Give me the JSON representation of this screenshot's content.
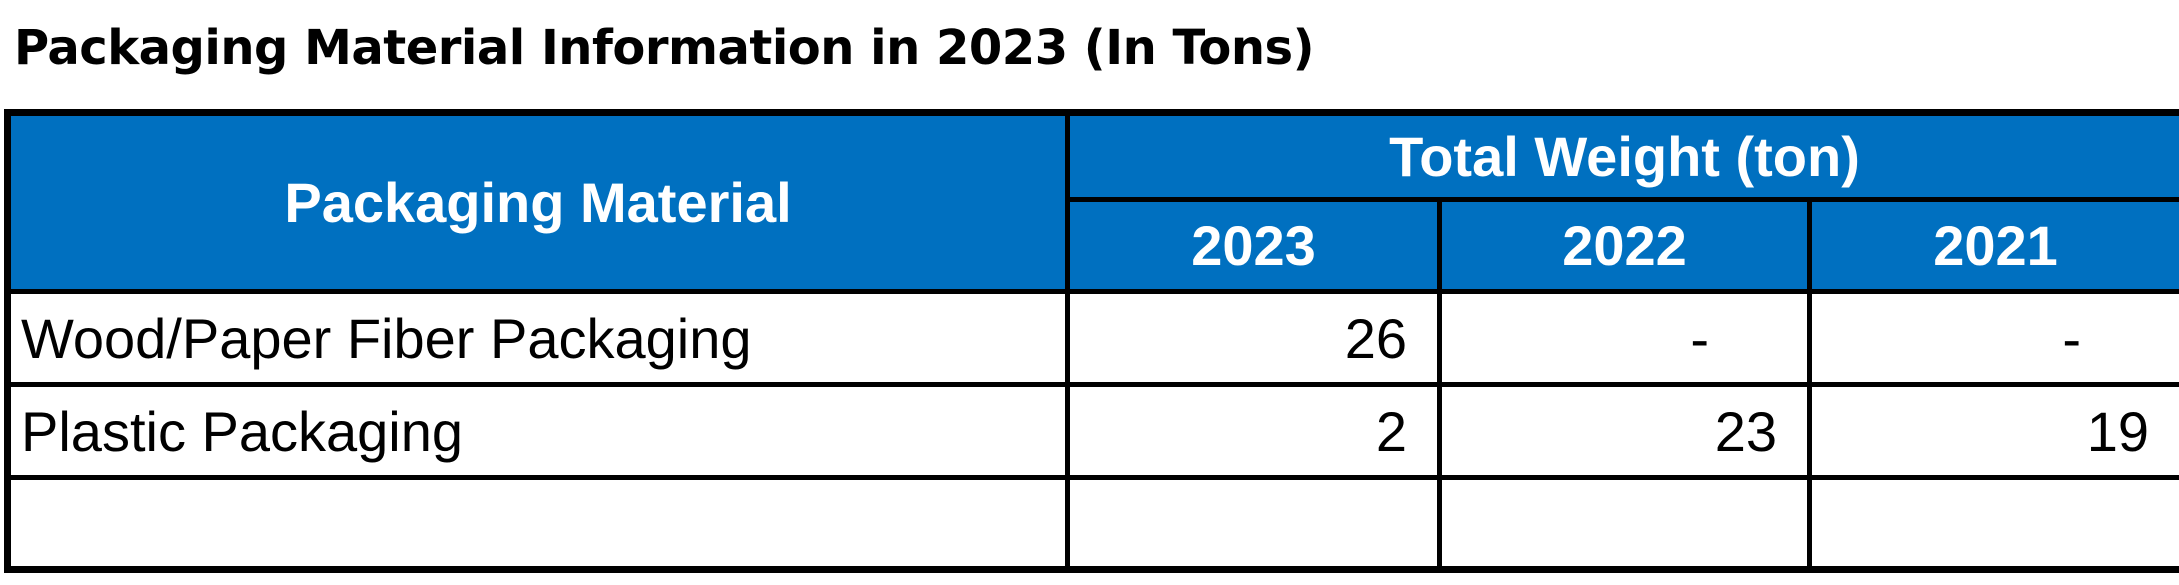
{
  "title": "Packaging Material Information in 2023 (In Tons)",
  "table": {
    "header_material": "Packaging Material",
    "header_group": "Total Weight (ton)",
    "years": [
      "2023",
      "2022",
      "2021"
    ],
    "rows": [
      {
        "material": "Wood/Paper Fiber Packaging",
        "values": [
          "26",
          "-",
          "-"
        ]
      },
      {
        "material": "Plastic Packaging",
        "values": [
          "2",
          "23",
          "19"
        ]
      }
    ]
  },
  "colors": {
    "header_background": "#0070c0",
    "header_text": "#ffffff",
    "border": "#000000"
  }
}
